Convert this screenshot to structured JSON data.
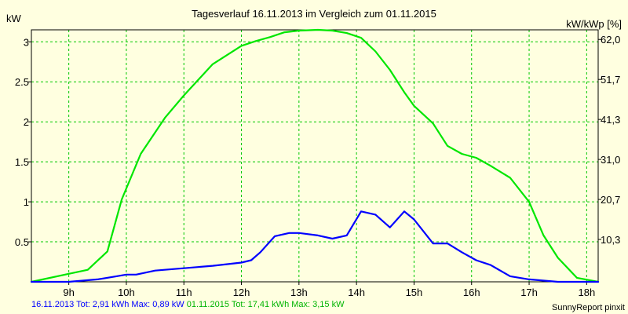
{
  "chart_data": {
    "type": "line",
    "title": "Tagesverlauf 16.11.2013 im Vergleich zum 01.11.2015",
    "ylabel_left": "kW",
    "ylabel_right": "kW/kWp [%]",
    "xlim": [
      8.35,
      18.2
    ],
    "ylim": [
      0,
      3.15
    ],
    "x_ticks": [
      9,
      10,
      11,
      12,
      13,
      14,
      15,
      16,
      17,
      18
    ],
    "x_tick_labels": [
      "9h",
      "10h",
      "11h",
      "12h",
      "13h",
      "14h",
      "15h",
      "16h",
      "17h",
      "18h"
    ],
    "y_ticks_left": [
      0.5,
      1,
      1.5,
      2,
      2.5,
      3
    ],
    "y_tick_labels_left": [
      "0.5",
      "1",
      "1.5",
      "2",
      "2.5",
      "3"
    ],
    "y_ticks_right": [
      0.53,
      1.03,
      1.53,
      2.03,
      2.53,
      3.03
    ],
    "y_tick_labels_right": [
      "10,3",
      "20,7",
      "31,0",
      "41,3",
      "51,7",
      "62,0"
    ],
    "grid": true,
    "series": [
      {
        "name": "16.11.2013",
        "color": "#0000ff",
        "x": [
          8.35,
          9.0,
          9.5,
          9.83,
          10.0,
          10.17,
          10.5,
          10.83,
          11.0,
          11.5,
          12.0,
          12.17,
          12.33,
          12.58,
          12.83,
          13.0,
          13.33,
          13.58,
          13.83,
          14.08,
          14.33,
          14.58,
          14.83,
          15.0,
          15.33,
          15.58,
          15.83,
          16.08,
          16.33,
          16.67,
          17.0,
          17.5,
          18.2
        ],
        "y": [
          0.0,
          0.0,
          0.03,
          0.07,
          0.09,
          0.09,
          0.14,
          0.16,
          0.17,
          0.2,
          0.24,
          0.27,
          0.37,
          0.57,
          0.61,
          0.61,
          0.58,
          0.54,
          0.58,
          0.88,
          0.84,
          0.68,
          0.88,
          0.78,
          0.48,
          0.48,
          0.37,
          0.27,
          0.21,
          0.07,
          0.03,
          0.0,
          0.0
        ]
      },
      {
        "name": "01.11.2015",
        "color": "#00e600",
        "x": [
          8.35,
          9.0,
          9.33,
          9.67,
          9.92,
          10.25,
          10.67,
          11.0,
          11.5,
          12.0,
          12.25,
          12.5,
          12.75,
          13.0,
          13.33,
          13.58,
          13.83,
          14.08,
          14.33,
          14.58,
          14.83,
          15.0,
          15.33,
          15.58,
          15.83,
          16.08,
          16.33,
          16.67,
          17.0,
          17.25,
          17.5,
          17.83,
          18.2
        ],
        "y": [
          0.0,
          0.1,
          0.15,
          0.38,
          1.03,
          1.6,
          2.05,
          2.33,
          2.72,
          2.95,
          3.01,
          3.06,
          3.12,
          3.14,
          3.15,
          3.14,
          3.11,
          3.05,
          2.88,
          2.65,
          2.37,
          2.2,
          1.98,
          1.7,
          1.6,
          1.55,
          1.45,
          1.3,
          1.0,
          0.58,
          0.3,
          0.05,
          0.0
        ]
      }
    ]
  },
  "footer": {
    "s1": "16.11.2013 Tot: 2,91 kWh Max: 0,89 kW",
    "s2": "01.11.2015 Tot: 17,41 kWh Max: 3,15 kW"
  },
  "credit": "SunnyReport pinxit"
}
